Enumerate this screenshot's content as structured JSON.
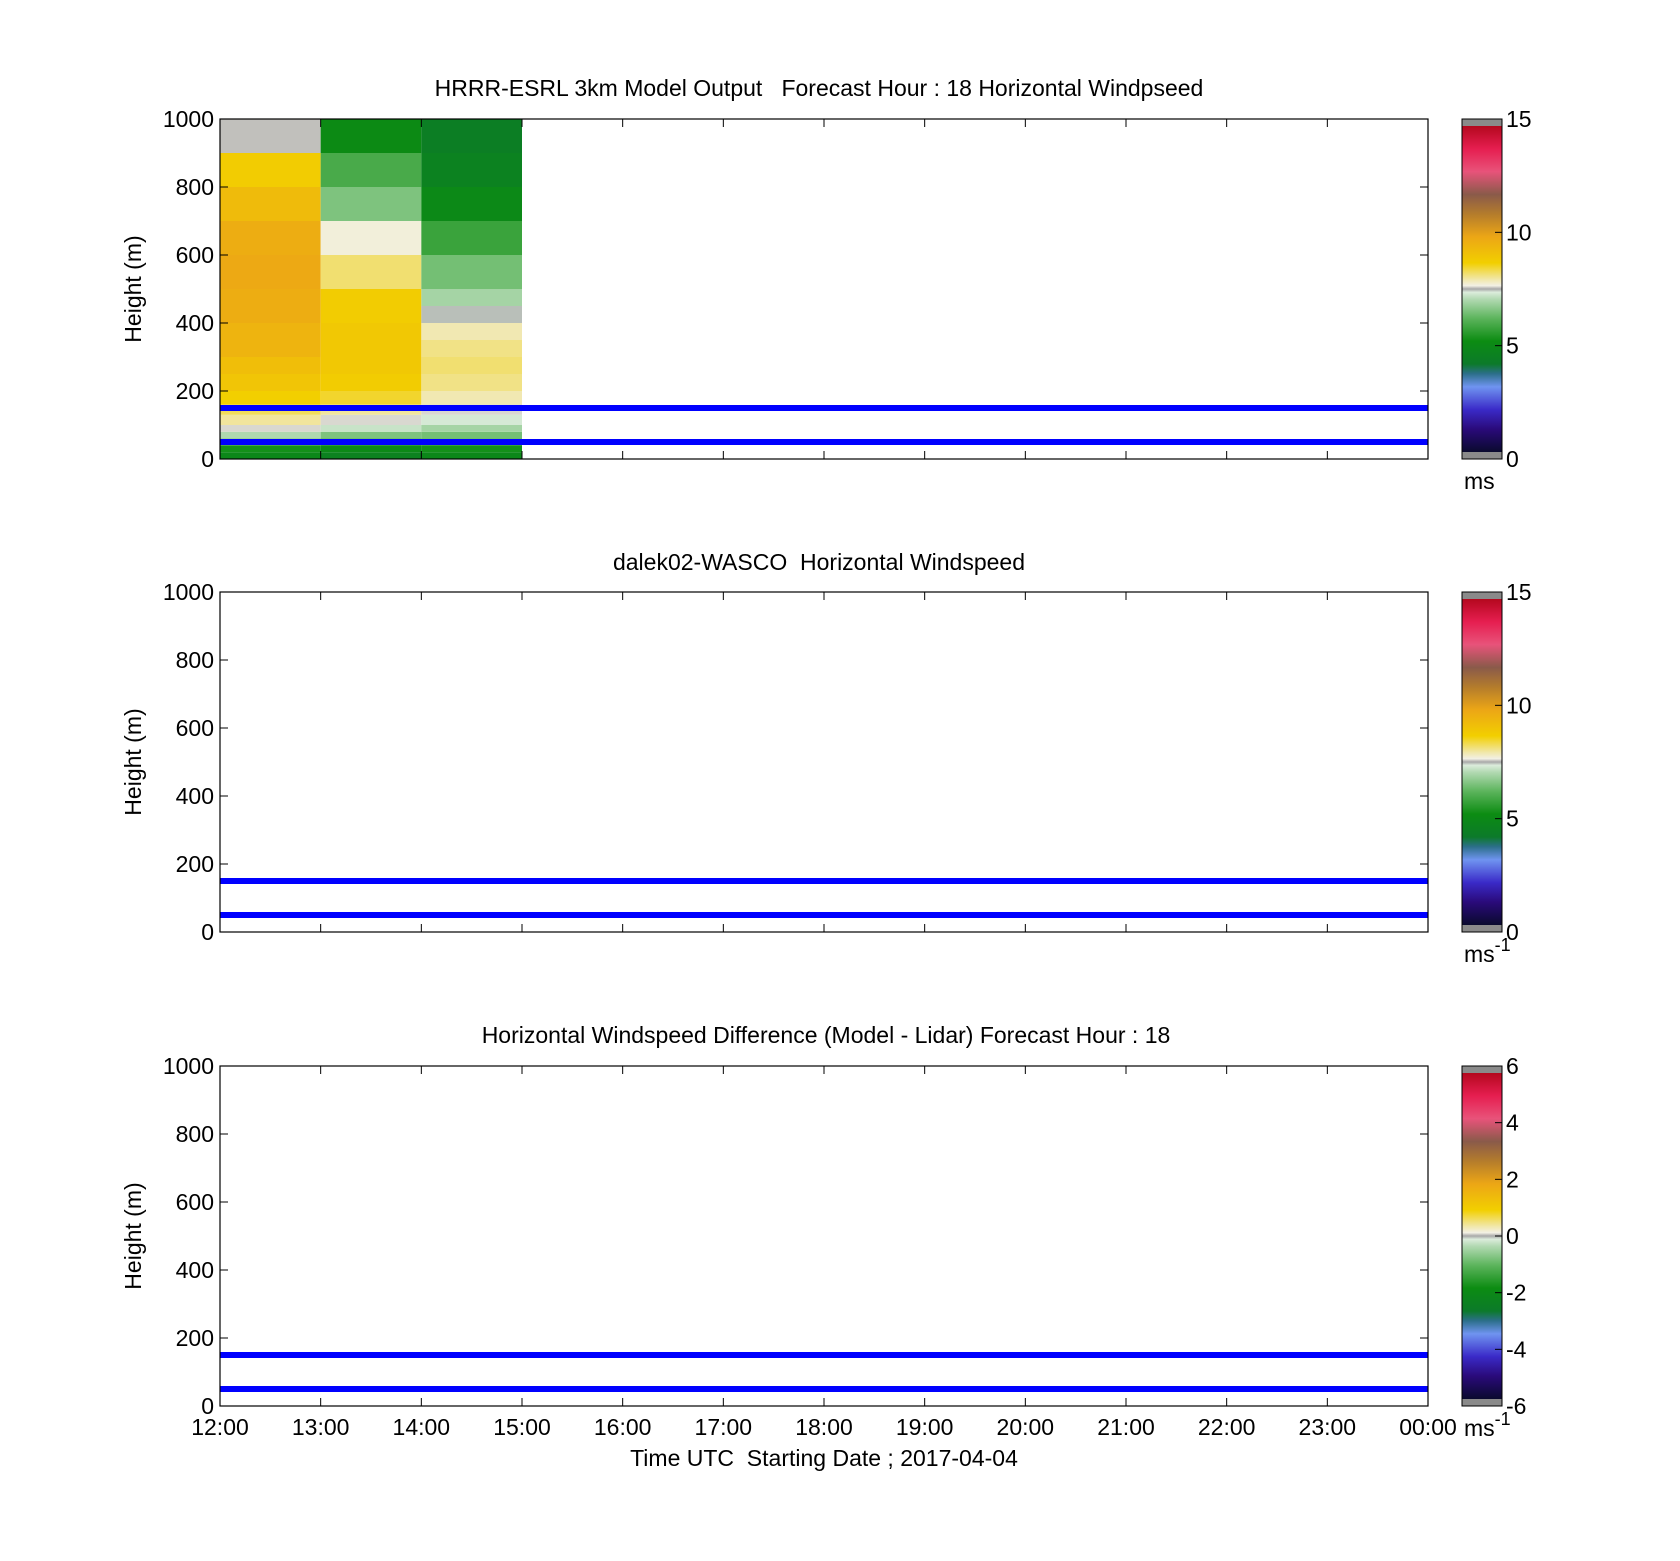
{
  "chart_data": [
    {
      "type": "heatmap",
      "title": "HRRR-ESRL 3km Model Output   Forecast Hour : 18 Horizontal Windpseed",
      "ylabel": "Height (m)",
      "xlabel": "",
      "ylim": [
        0,
        1000
      ],
      "xlim": [
        "12:00",
        "00:00"
      ],
      "x_ticks": [
        "",
        "",
        "",
        "",
        "",
        "",
        "",
        "",
        "",
        "",
        "",
        "",
        ""
      ],
      "y_ticks": [
        "0",
        "200",
        "400",
        "600",
        "800",
        "1000"
      ],
      "reference_lines_m": [
        150,
        50
      ],
      "reference_line_color": "#0000ff",
      "colorbar": {
        "min": 0,
        "max": 15,
        "ticks": [
          "0",
          "5",
          "10",
          "15"
        ],
        "unit": "ms",
        "unit_sup": ""
      },
      "cells": [
        {
          "t0": 0,
          "t1": 1,
          "h0": 0,
          "h1": 20,
          "v": 4.8
        },
        {
          "t0": 0,
          "t1": 1,
          "h0": 20,
          "h1": 40,
          "v": 5.2
        },
        {
          "t0": 0,
          "t1": 1,
          "h0": 40,
          "h1": 60,
          "v": 6.2
        },
        {
          "t0": 0,
          "t1": 1,
          "h0": 60,
          "h1": 80,
          "v": 7.0
        },
        {
          "t0": 0,
          "t1": 1,
          "h0": 80,
          "h1": 100,
          "v": 7.6
        },
        {
          "t0": 0,
          "t1": 1,
          "h0": 100,
          "h1": 130,
          "v": 8.0
        },
        {
          "t0": 0,
          "t1": 1,
          "h0": 130,
          "h1": 160,
          "v": 8.3
        },
        {
          "t0": 0,
          "t1": 1,
          "h0": 160,
          "h1": 200,
          "v": 8.7
        },
        {
          "t0": 0,
          "t1": 1,
          "h0": 200,
          "h1": 250,
          "v": 9.0
        },
        {
          "t0": 0,
          "t1": 1,
          "h0": 250,
          "h1": 300,
          "v": 9.2
        },
        {
          "t0": 0,
          "t1": 1,
          "h0": 300,
          "h1": 400,
          "v": 9.5
        },
        {
          "t0": 0,
          "t1": 1,
          "h0": 400,
          "h1": 500,
          "v": 9.7
        },
        {
          "t0": 0,
          "t1": 1,
          "h0": 500,
          "h1": 600,
          "v": 9.8
        },
        {
          "t0": 0,
          "t1": 1,
          "h0": 600,
          "h1": 700,
          "v": 9.7
        },
        {
          "t0": 0,
          "t1": 1,
          "h0": 700,
          "h1": 800,
          "v": 9.3
        },
        {
          "t0": 0,
          "t1": 1,
          "h0": 800,
          "h1": 900,
          "v": 8.8
        },
        {
          "t0": 0,
          "t1": 1,
          "h0": 900,
          "h1": 1000,
          "v": 7.55
        },
        {
          "t0": 1,
          "t1": 2,
          "h0": 0,
          "h1": 20,
          "v": 4.5
        },
        {
          "t0": 1,
          "t1": 2,
          "h0": 20,
          "h1": 40,
          "v": 4.9
        },
        {
          "t0": 1,
          "t1": 2,
          "h0": 40,
          "h1": 60,
          "v": 5.6
        },
        {
          "t0": 1,
          "t1": 2,
          "h0": 60,
          "h1": 80,
          "v": 6.5
        },
        {
          "t0": 1,
          "t1": 2,
          "h0": 80,
          "h1": 100,
          "v": 7.2
        },
        {
          "t0": 1,
          "t1": 2,
          "h0": 100,
          "h1": 130,
          "v": 7.6
        },
        {
          "t0": 1,
          "t1": 2,
          "h0": 130,
          "h1": 160,
          "v": 8.0
        },
        {
          "t0": 1,
          "t1": 2,
          "h0": 160,
          "h1": 200,
          "v": 8.5
        },
        {
          "t0": 1,
          "t1": 2,
          "h0": 200,
          "h1": 250,
          "v": 8.8
        },
        {
          "t0": 1,
          "t1": 2,
          "h0": 250,
          "h1": 300,
          "v": 8.9
        },
        {
          "t0": 1,
          "t1": 2,
          "h0": 300,
          "h1": 400,
          "v": 8.9
        },
        {
          "t0": 1,
          "t1": 2,
          "h0": 400,
          "h1": 500,
          "v": 8.8
        },
        {
          "t0": 1,
          "t1": 2,
          "h0": 500,
          "h1": 600,
          "v": 8.2
        },
        {
          "t0": 1,
          "t1": 2,
          "h0": 600,
          "h1": 700,
          "v": 7.7
        },
        {
          "t0": 1,
          "t1": 2,
          "h0": 700,
          "h1": 800,
          "v": 6.5
        },
        {
          "t0": 1,
          "t1": 2,
          "h0": 800,
          "h1": 900,
          "v": 5.9
        },
        {
          "t0": 1,
          "t1": 2,
          "h0": 900,
          "h1": 1000,
          "v": 5.0
        },
        {
          "t0": 2,
          "t1": 3,
          "h0": 0,
          "h1": 20,
          "v": 4.8
        },
        {
          "t0": 2,
          "t1": 3,
          "h0": 20,
          "h1": 40,
          "v": 5.2
        },
        {
          "t0": 2,
          "t1": 3,
          "h0": 40,
          "h1": 60,
          "v": 5.8
        },
        {
          "t0": 2,
          "t1": 3,
          "h0": 60,
          "h1": 80,
          "v": 6.4
        },
        {
          "t0": 2,
          "t1": 3,
          "h0": 80,
          "h1": 100,
          "v": 6.9
        },
        {
          "t0": 2,
          "t1": 3,
          "h0": 100,
          "h1": 130,
          "v": 7.3
        },
        {
          "t0": 2,
          "t1": 3,
          "h0": 130,
          "h1": 160,
          "v": 7.6
        },
        {
          "t0": 2,
          "t1": 3,
          "h0": 160,
          "h1": 200,
          "v": 7.9
        },
        {
          "t0": 2,
          "t1": 3,
          "h0": 200,
          "h1": 250,
          "v": 8.1
        },
        {
          "t0": 2,
          "t1": 3,
          "h0": 250,
          "h1": 300,
          "v": 8.2
        },
        {
          "t0": 2,
          "t1": 3,
          "h0": 300,
          "h1": 350,
          "v": 8.1
        },
        {
          "t0": 2,
          "t1": 3,
          "h0": 350,
          "h1": 400,
          "v": 7.9
        },
        {
          "t0": 2,
          "t1": 3,
          "h0": 400,
          "h1": 450,
          "v": 7.45
        },
        {
          "t0": 2,
          "t1": 3,
          "h0": 450,
          "h1": 500,
          "v": 6.9
        },
        {
          "t0": 2,
          "t1": 3,
          "h0": 500,
          "h1": 600,
          "v": 6.4
        },
        {
          "t0": 2,
          "t1": 3,
          "h0": 600,
          "h1": 700,
          "v": 5.7
        },
        {
          "t0": 2,
          "t1": 3,
          "h0": 700,
          "h1": 800,
          "v": 4.9
        },
        {
          "t0": 2,
          "t1": 3,
          "h0": 800,
          "h1": 900,
          "v": 4.5
        },
        {
          "t0": 2,
          "t1": 3,
          "h0": 900,
          "h1": 1000,
          "v": 4.3
        }
      ]
    },
    {
      "type": "heatmap",
      "title": "dalek02-WASCO  Horizontal Windspeed",
      "ylabel": "Height (m)",
      "xlabel": "",
      "ylim": [
        0,
        1000
      ],
      "xlim": [
        "12:00",
        "00:00"
      ],
      "x_ticks": [
        "",
        "",
        "",
        "",
        "",
        "",
        "",
        "",
        "",
        "",
        "",
        "",
        ""
      ],
      "y_ticks": [
        "0",
        "200",
        "400",
        "600",
        "800",
        "1000"
      ],
      "reference_lines_m": [
        150,
        50
      ],
      "reference_line_color": "#0000ff",
      "colorbar": {
        "min": 0,
        "max": 15,
        "ticks": [
          "0",
          "5",
          "10",
          "15"
        ],
        "unit": "ms",
        "unit_sup": "-1"
      },
      "cells": []
    },
    {
      "type": "heatmap",
      "title": "Horizontal Windspeed Difference (Model - Lidar) Forecast Hour : 18",
      "ylabel": "Height (m)",
      "xlabel": "Time UTC  Starting Date ; 2017-04-04",
      "ylim": [
        0,
        1000
      ],
      "xlim": [
        "12:00",
        "00:00"
      ],
      "x_ticks": [
        "12:00",
        "13:00",
        "14:00",
        "15:00",
        "16:00",
        "17:00",
        "18:00",
        "19:00",
        "20:00",
        "21:00",
        "22:00",
        "23:00",
        "00:00"
      ],
      "y_ticks": [
        "0",
        "200",
        "400",
        "600",
        "800",
        "1000"
      ],
      "reference_lines_m": [
        150,
        50
      ],
      "reference_line_color": "#0000ff",
      "colorbar": {
        "min": -6,
        "max": 6,
        "ticks": [
          "-6",
          "-4",
          "-2",
          "0",
          "2",
          "4",
          "6"
        ],
        "unit": "ms",
        "unit_sup": "-1"
      },
      "cells": []
    }
  ],
  "colormap_stops": [
    {
      "f": 0.0,
      "c": "#0a0a2e"
    },
    {
      "f": 0.07,
      "c": "#2a0a7a"
    },
    {
      "f": 0.13,
      "c": "#3a2ac8"
    },
    {
      "f": 0.2,
      "c": "#6f94f0"
    },
    {
      "f": 0.24,
      "c": "#2c6f8a"
    },
    {
      "f": 0.27,
      "c": "#0c7a2a"
    },
    {
      "f": 0.34,
      "c": "#0c8c12"
    },
    {
      "f": 0.41,
      "c": "#5cb45c"
    },
    {
      "f": 0.47,
      "c": "#b4dab4"
    },
    {
      "f": 0.49,
      "c": "#dcecdc"
    },
    {
      "f": 0.5,
      "c": "#a8a8a8"
    },
    {
      "f": 0.51,
      "c": "#f2f0e4"
    },
    {
      "f": 0.53,
      "c": "#f1e7a8"
    },
    {
      "f": 0.58,
      "c": "#f2cf00"
    },
    {
      "f": 0.66,
      "c": "#eca616"
    },
    {
      "f": 0.73,
      "c": "#b47c2c"
    },
    {
      "f": 0.79,
      "c": "#8a5a4a"
    },
    {
      "f": 0.86,
      "c": "#e8537a"
    },
    {
      "f": 0.93,
      "c": "#e61e50"
    },
    {
      "f": 1.0,
      "c": "#b4081e"
    }
  ],
  "colorbar_end_color": "#8a8a8a"
}
